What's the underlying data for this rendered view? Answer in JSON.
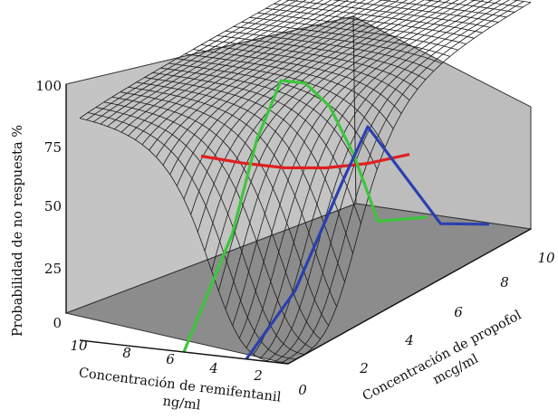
{
  "chart_data": {
    "type": "surface3d",
    "title": "",
    "z_axis": {
      "label": "Probabilidad de no respuesta %",
      "range": [
        0,
        100
      ],
      "ticks": [
        "0",
        "25",
        "50",
        "75",
        "100"
      ]
    },
    "x_axis": {
      "label_line1": "Concentración de remifentanil",
      "label_line2": "ng/ml",
      "range": [
        0,
        10
      ],
      "ticks": [
        "0",
        "2",
        "4",
        "6",
        "8",
        "10"
      ]
    },
    "y_axis": {
      "label_line1": "Concentración de propofol",
      "label_line2": "mcg/ml",
      "range": [
        0,
        10
      ],
      "ticks": [
        "2",
        "4",
        "6",
        "8",
        "10"
      ]
    },
    "surface": {
      "model": "response surface (sigmoid interaction)",
      "grid": "black wireframe",
      "walls": "grey"
    },
    "series": [
      {
        "color": "#e02020",
        "propofol": 5,
        "remifentanil": [
          10,
          8,
          6,
          4,
          2,
          0
        ],
        "probability": [
          51,
          50,
          50,
          52,
          56,
          62
        ]
      },
      {
        "color": "#3cc63c",
        "remifentanil": 5,
        "propofol": [
          0,
          2,
          3,
          4,
          5,
          6,
          7,
          8,
          10
        ],
        "probability": [
          0,
          40,
          75,
          95,
          88,
          72,
          45,
          10,
          0
        ]
      },
      {
        "color": "#2a3fb0",
        "remifentanil": 2,
        "propofol": [
          0,
          2,
          4,
          5,
          6,
          8,
          10
        ],
        "probability": [
          0,
          18,
          55,
          72,
          52,
          12,
          0
        ]
      }
    ]
  }
}
